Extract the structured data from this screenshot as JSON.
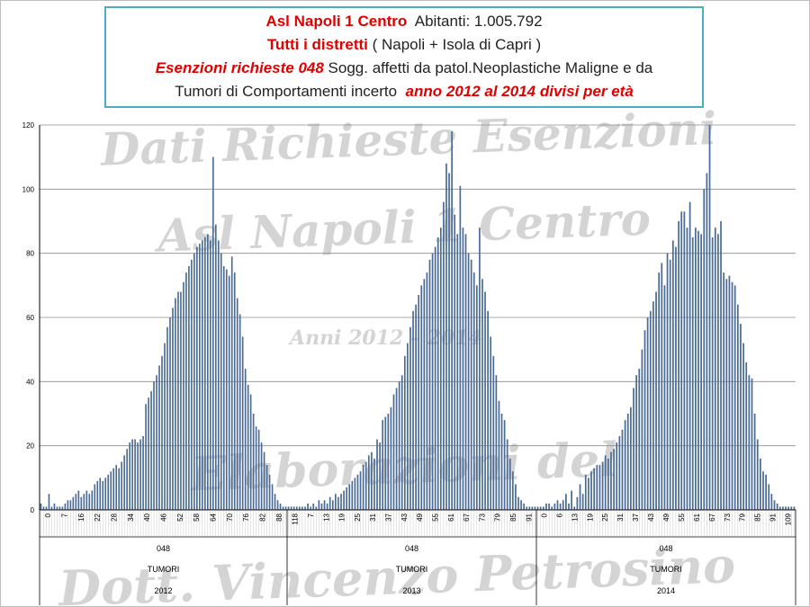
{
  "title": {
    "line1_a": "Asl Napoli 1 Centro",
    "line1_b": "Abitanti: 1.005.792",
    "line2_a": "Tutti i distretti",
    "line2_b": "( Napoli + Isola di Capri )",
    "line3_a": "Esenzioni richieste 048",
    "line3_b": "Sogg. affetti da patol.Neoplastiche Maligne e da",
    "line4_a": "Tumori di Comportamenti incerto",
    "line4_b": "anno 2012 al 2014 divisi per età"
  },
  "watermarks": {
    "w1": "Dati Richieste Esenzioni",
    "w2": "Asl Napoli 1 Centro",
    "w3": "Anni 2012 – 2014",
    "w4": "Elaborazioni del",
    "w5": "Dott. Vincenzo Petrosino"
  },
  "colors": {
    "bar": "#4a6b95",
    "grid": "#8c8c8c",
    "title_border": "#4bacc6",
    "title_red": "#e00000"
  },
  "chart_data": {
    "type": "bar",
    "ylim": [
      0,
      120
    ],
    "yticks": [
      0,
      20,
      40,
      60,
      80,
      100,
      120
    ],
    "groups": [
      {
        "code": "048",
        "label": "TUMORI",
        "year": "2012",
        "tick_labels": [
          "0",
          "7",
          "16",
          "22",
          "28",
          "34",
          "40",
          "46",
          "52",
          "58",
          "64",
          "70",
          "76",
          "82",
          "88"
        ],
        "values": [
          2,
          1,
          1,
          5,
          1,
          2,
          1,
          1,
          1,
          2,
          3,
          3,
          4,
          5,
          6,
          4,
          5,
          6,
          5,
          6,
          8,
          9,
          10,
          9,
          10,
          11,
          12,
          13,
          14,
          13,
          15,
          17,
          19,
          21,
          22,
          22,
          21,
          22,
          23,
          33,
          35,
          37,
          40,
          42,
          45,
          48,
          52,
          57,
          60,
          63,
          66,
          68,
          68,
          71,
          74,
          76,
          78,
          80,
          82,
          83,
          84,
          85,
          86,
          84,
          110,
          89,
          84,
          80,
          76,
          75,
          73,
          79,
          74,
          66,
          61,
          54,
          44,
          39,
          36,
          30,
          26,
          25,
          21,
          18,
          14,
          11,
          8,
          5,
          3,
          2,
          1,
          1
        ]
      },
      {
        "code": "048",
        "label": "TUMORI",
        "year": "2013",
        "tick_labels": [
          "118",
          "7",
          "13",
          "19",
          "25",
          "31",
          "37",
          "43",
          "49",
          "55",
          "61",
          "67",
          "73",
          "79",
          "85",
          "91"
        ],
        "values": [
          1,
          1,
          1,
          1,
          1,
          1,
          1,
          2,
          1,
          2,
          1,
          3,
          2,
          3,
          2,
          4,
          3,
          5,
          4,
          5,
          6,
          7,
          8,
          9,
          10,
          11,
          12,
          14,
          15,
          17,
          18,
          16,
          22,
          21,
          28,
          29,
          30,
          32,
          36,
          38,
          40,
          42,
          48,
          52,
          57,
          62,
          64,
          67,
          70,
          72,
          74,
          78,
          80,
          82,
          85,
          88,
          96,
          108,
          105,
          118,
          92,
          86,
          101,
          88,
          86,
          80,
          78,
          74,
          70,
          88,
          72,
          68,
          62,
          54,
          48,
          42,
          34,
          30,
          28,
          22,
          16,
          12,
          8,
          4,
          3,
          2,
          1,
          1,
          1,
          1
        ]
      },
      {
        "code": "048",
        "label": "TUMORI",
        "year": "2014",
        "tick_labels": [
          "0",
          "6",
          "13",
          "19",
          "25",
          "31",
          "37",
          "43",
          "49",
          "55",
          "61",
          "67",
          "73",
          "79",
          "85",
          "91",
          "109"
        ],
        "values": [
          1,
          1,
          1,
          2,
          2,
          1,
          2,
          3,
          2,
          3,
          5,
          2,
          6,
          1,
          4,
          8,
          5,
          11,
          10,
          12,
          13,
          14,
          14,
          15,
          17,
          16,
          18,
          19,
          21,
          23,
          25,
          28,
          30,
          32,
          38,
          42,
          44,
          50,
          56,
          60,
          62,
          65,
          68,
          74,
          77,
          70,
          80,
          78,
          84,
          82,
          90,
          93,
          93,
          88,
          96,
          85,
          88,
          87,
          86,
          100,
          105,
          120,
          85,
          88,
          86,
          90,
          74,
          72,
          73,
          71,
          70,
          64,
          58,
          52,
          46,
          42,
          41,
          30,
          22,
          16,
          12,
          11,
          8,
          5,
          3,
          2,
          1,
          1,
          1,
          1,
          1,
          1
        ]
      }
    ]
  }
}
